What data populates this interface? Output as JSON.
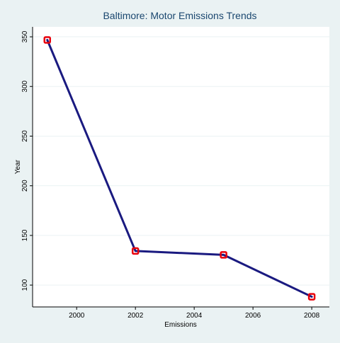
{
  "chart_data": {
    "type": "line",
    "title": "Baltimore: Motor Emissions Trends",
    "xlabel": "Emissions",
    "ylabel": "Year",
    "x": [
      1999,
      2002,
      2005,
      2008
    ],
    "series": [
      {
        "name": "",
        "values": [
          346.82,
          134.31,
          130.43,
          88.28
        ]
      }
    ],
    "xlim": [
      1998.5,
      2008.6
    ],
    "ylim": [
      78,
      360
    ],
    "xticks": [
      2000,
      2002,
      2004,
      2006,
      2008
    ],
    "yticks": [
      100,
      150,
      200,
      250,
      300,
      350
    ],
    "grid": true,
    "legend": "none",
    "colors": {
      "background": "#eaf2f3",
      "plot_background": "#ffffff",
      "line": "#1a1a80",
      "marker": "#e8000b",
      "title": "#1a476f",
      "grid": "#eaf2f3"
    }
  }
}
